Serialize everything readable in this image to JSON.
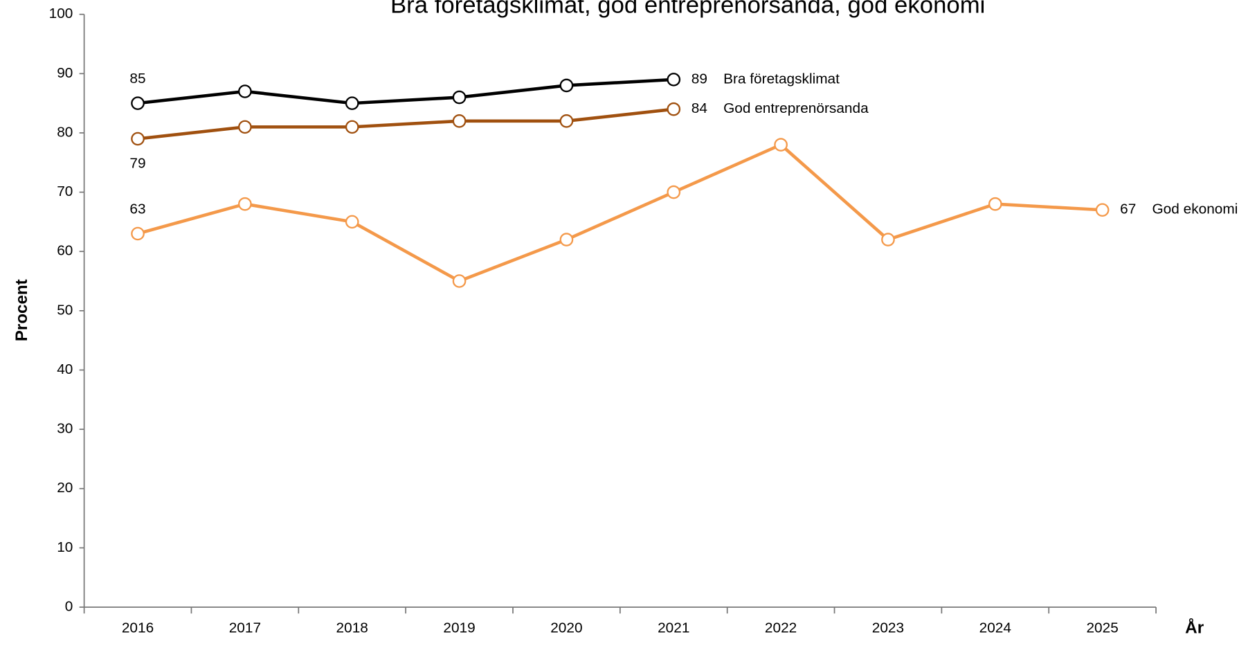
{
  "chart_data": {
    "type": "line",
    "title": "Bra företagsklimat, god entreprenörsanda, god ekonomi",
    "x_label": "År",
    "y_label": "Procent",
    "categories": [
      "2016",
      "2017",
      "2018",
      "2019",
      "2020",
      "2021",
      "2022",
      "2023",
      "2024",
      "2025"
    ],
    "series": [
      {
        "name": "Bra företagsklimat",
        "color": "#000000",
        "values": [
          85,
          87,
          85,
          86,
          88,
          89,
          null,
          null,
          null,
          null
        ]
      },
      {
        "name": "God entreprenörsanda",
        "color": "#a0500f",
        "values": [
          79,
          81,
          81,
          82,
          82,
          84,
          null,
          null,
          null,
          null
        ]
      },
      {
        "name": "God ekonomi",
        "color": "#f4994a",
        "values": [
          63,
          68,
          65,
          55,
          62,
          70,
          78,
          62,
          68,
          67
        ]
      }
    ],
    "ylim": [
      0,
      100
    ],
    "yticks": [
      0,
      10,
      20,
      30,
      40,
      50,
      60,
      70,
      80,
      90,
      100
    ],
    "grid": false
  }
}
